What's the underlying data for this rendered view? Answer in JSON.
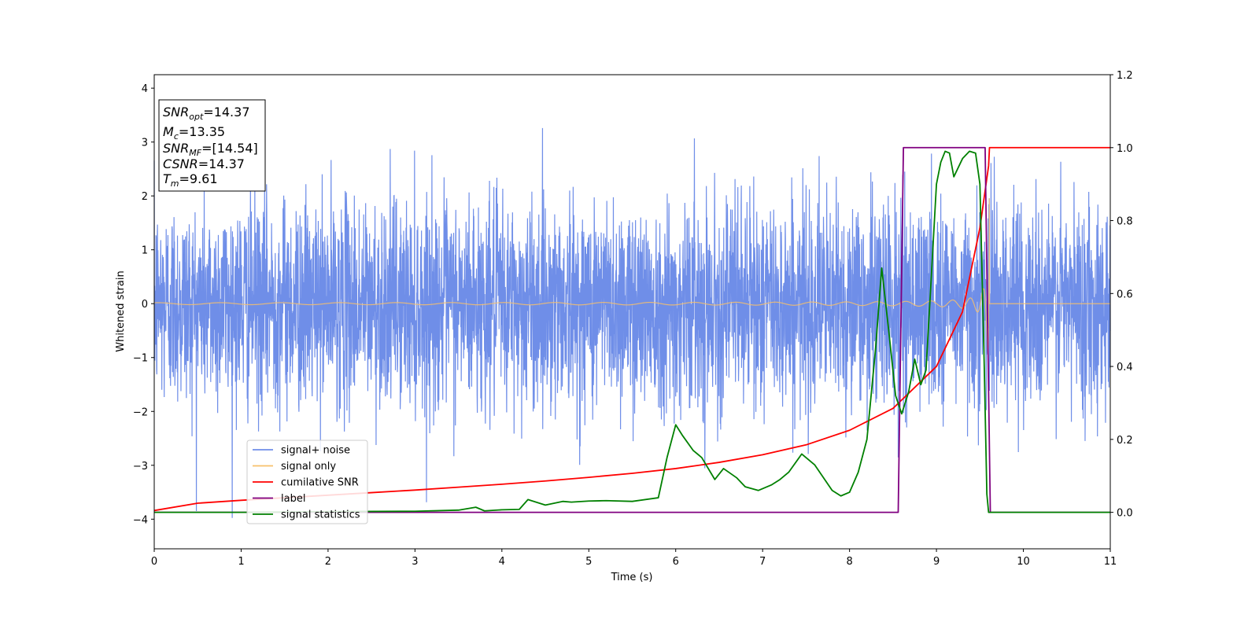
{
  "chart_data": {
    "type": "line",
    "xlabel": "Time (s)",
    "ylabel_left": "Whitened strain",
    "xlim": [
      0,
      11
    ],
    "ylim_left": [
      -4.55,
      4.25
    ],
    "ylim_right": [
      -0.1,
      1.2
    ],
    "x_ticks": [
      "0",
      "1",
      "2",
      "3",
      "4",
      "5",
      "6",
      "7",
      "8",
      "9",
      "10",
      "11"
    ],
    "y_ticks_left": [
      "−4",
      "−3",
      "−2",
      "−1",
      "0",
      "1",
      "2",
      "3",
      "4"
    ],
    "y_ticks_right": [
      "0.0",
      "0.2",
      "0.4",
      "0.6",
      "0.8",
      "1.0",
      "1.2"
    ],
    "grid": false,
    "legend_position": "lower-left",
    "info_box": {
      "lines": [
        {
          "main": "SNR",
          "sub": "opt",
          "rest": "=14.37"
        },
        {
          "main": "M",
          "sub": "c",
          "rest": "=13.35"
        },
        {
          "main": "SNR",
          "sub": "MF",
          "rest": "=[14.54]"
        },
        {
          "main": "CSNR",
          "sub": "",
          "rest": "=14.37"
        },
        {
          "main": "T",
          "sub": "m",
          "rest": "=9.61"
        }
      ]
    },
    "series": [
      {
        "name": "signal+ noise",
        "color": "#6f8ee8",
        "axis": "left",
        "kind": "noise",
        "std": 0.95,
        "t_end": 11
      },
      {
        "name": "signal only",
        "color": "#f7c06b",
        "axis": "left",
        "kind": "chirp",
        "t_merge": 9.61
      },
      {
        "name": "cumilative SNR",
        "color": "#ff0000",
        "axis": "right",
        "x": [
          0,
          0.5,
          1,
          1.5,
          2,
          2.5,
          3,
          3.5,
          4,
          4.5,
          5,
          5.5,
          6,
          6.5,
          7,
          7.5,
          8,
          8.5,
          9,
          9.3,
          9.5,
          9.6,
          9.61,
          11
        ],
        "values": [
          0.005,
          0.025,
          0.033,
          0.04,
          0.047,
          0.054,
          0.061,
          0.069,
          0.077,
          0.086,
          0.096,
          0.107,
          0.12,
          0.137,
          0.158,
          0.185,
          0.225,
          0.285,
          0.4,
          0.55,
          0.78,
          0.95,
          1.0,
          1.0
        ]
      },
      {
        "name": "label",
        "color": "#800080",
        "axis": "right",
        "x": [
          0,
          8.56,
          8.62,
          9.56,
          9.62,
          11
        ],
        "values": [
          0,
          0,
          1,
          1,
          0,
          0
        ]
      },
      {
        "name": "signal statistics",
        "color": "#008000",
        "axis": "right",
        "x": [
          0,
          1,
          2,
          3,
          3.5,
          3.7,
          3.8,
          4,
          4.2,
          4.3,
          4.5,
          4.7,
          4.8,
          5,
          5.2,
          5.5,
          5.8,
          5.9,
          6.0,
          6.08,
          6.2,
          6.3,
          6.45,
          6.55,
          6.7,
          6.8,
          6.95,
          7.1,
          7.2,
          7.3,
          7.45,
          7.6,
          7.8,
          7.9,
          8.0,
          8.1,
          8.2,
          8.3,
          8.37,
          8.45,
          8.53,
          8.6,
          8.68,
          8.75,
          8.82,
          8.88,
          8.93,
          9.0,
          9.05,
          9.1,
          9.15,
          9.2,
          9.3,
          9.38,
          9.45,
          9.5,
          9.55,
          9.58,
          9.6,
          9.65,
          9.7,
          11
        ],
        "values": [
          0,
          0,
          0.002,
          0.003,
          0.006,
          0.014,
          0.004,
          0.007,
          0.008,
          0.035,
          0.02,
          0.03,
          0.028,
          0.031,
          0.032,
          0.03,
          0.04,
          0.15,
          0.24,
          0.21,
          0.17,
          0.15,
          0.09,
          0.12,
          0.095,
          0.07,
          0.06,
          0.075,
          0.09,
          0.11,
          0.16,
          0.13,
          0.06,
          0.045,
          0.055,
          0.11,
          0.2,
          0.45,
          0.67,
          0.5,
          0.32,
          0.27,
          0.33,
          0.42,
          0.35,
          0.39,
          0.6,
          0.9,
          0.96,
          0.99,
          0.985,
          0.92,
          0.97,
          0.99,
          0.985,
          0.9,
          0.4,
          0.05,
          0.0,
          0.0,
          0.0,
          0.0
        ]
      }
    ]
  }
}
